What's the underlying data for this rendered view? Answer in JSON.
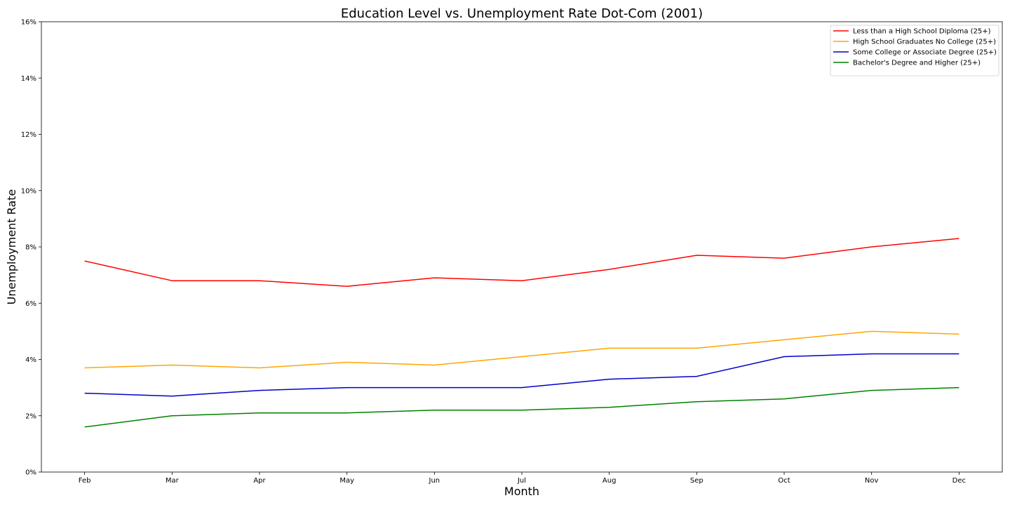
{
  "chart_data": {
    "type": "line",
    "title": "Education Level vs. Unemployment Rate Dot-Com (2001)",
    "xlabel": "Month",
    "ylabel": "Unemployment Rate",
    "categories": [
      "Feb",
      "Mar",
      "Apr",
      "May",
      "Jun",
      "Jul",
      "Aug",
      "Sep",
      "Oct",
      "Nov",
      "Dec"
    ],
    "ylim": [
      0,
      16
    ],
    "yticks": [
      0,
      2,
      4,
      6,
      8,
      10,
      12,
      14,
      16
    ],
    "ytick_labels": [
      "0%",
      "2%",
      "4%",
      "6%",
      "8%",
      "10%",
      "12%",
      "14%",
      "16%"
    ],
    "grid": false,
    "legend_position": "top-right",
    "series": [
      {
        "name": "Less than a High School Diploma (25+)",
        "color": "#ff0000",
        "values": [
          7.5,
          6.8,
          6.8,
          6.6,
          6.9,
          6.8,
          7.2,
          7.7,
          7.6,
          8.0,
          8.3
        ]
      },
      {
        "name": "High School Graduates No College (25+)",
        "color": "#ffa500",
        "values": [
          3.7,
          3.8,
          3.7,
          3.9,
          3.8,
          4.1,
          4.4,
          4.4,
          4.7,
          5.0,
          4.9
        ]
      },
      {
        "name": "Some College or Associate Degree (25+)",
        "color": "#0000cc",
        "values": [
          2.8,
          2.7,
          2.9,
          3.0,
          3.0,
          3.0,
          3.3,
          3.4,
          4.1,
          4.2,
          4.2
        ]
      },
      {
        "name": "Bachelor's Degree and Higher (25+)",
        "color": "#008000",
        "values": [
          1.6,
          2.0,
          2.1,
          2.1,
          2.2,
          2.2,
          2.3,
          2.5,
          2.6,
          2.9,
          3.0
        ]
      }
    ]
  }
}
